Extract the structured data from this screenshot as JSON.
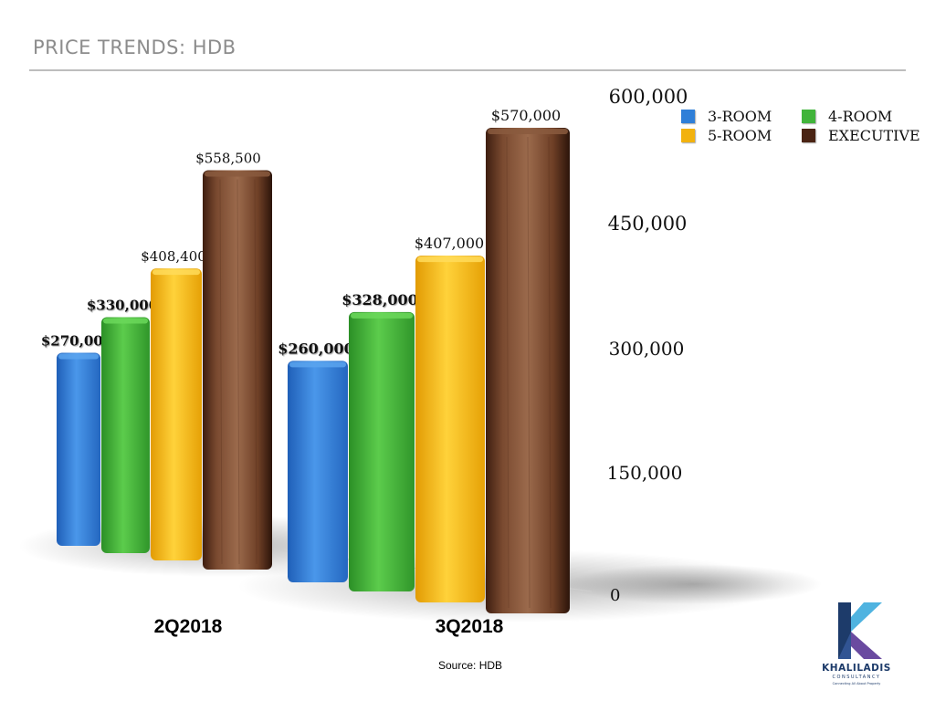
{
  "slide": {
    "title": "PRICE TRENDS: HDB",
    "source": "Source: HDB"
  },
  "logo": {
    "name": "KHALILADIS",
    "sub": "CONSULTANCY",
    "tagline": "Connecting All About Property"
  },
  "colors": {
    "3-ROOM": "#2f7fd8",
    "4-ROOM": "#41b43a",
    "5-ROOM": "#f2b20e",
    "EXECUTIVE": "#6a3a22"
  },
  "chart_data": {
    "type": "bar",
    "style": "3d",
    "title": "",
    "xlabel": "",
    "ylabel": "",
    "categories": [
      "2Q2018",
      "3Q2018"
    ],
    "series": [
      {
        "name": "3-ROOM",
        "values": [
          270000,
          260000
        ]
      },
      {
        "name": "4-ROOM",
        "values": [
          330000,
          328000
        ]
      },
      {
        "name": "5-ROOM",
        "values": [
          408400,
          407000
        ]
      },
      {
        "name": "EXECUTIVE",
        "values": [
          558500,
          570000
        ]
      }
    ],
    "data_labels": [
      [
        "$270,000",
        "$260,000"
      ],
      [
        "$330,000",
        "$328,000"
      ],
      [
        "$408,400",
        "$407,000"
      ],
      [
        "$558,500",
        "$570,000"
      ]
    ],
    "y_ticks": [
      "0",
      "150,000",
      "300,000",
      "450,000",
      "600,000"
    ],
    "y_tick_values": [
      0,
      150000,
      300000,
      450000,
      600000
    ],
    "ylim": [
      0,
      600000
    ],
    "y_axis_side": "right",
    "legend_position": "top-right",
    "grid": false
  }
}
